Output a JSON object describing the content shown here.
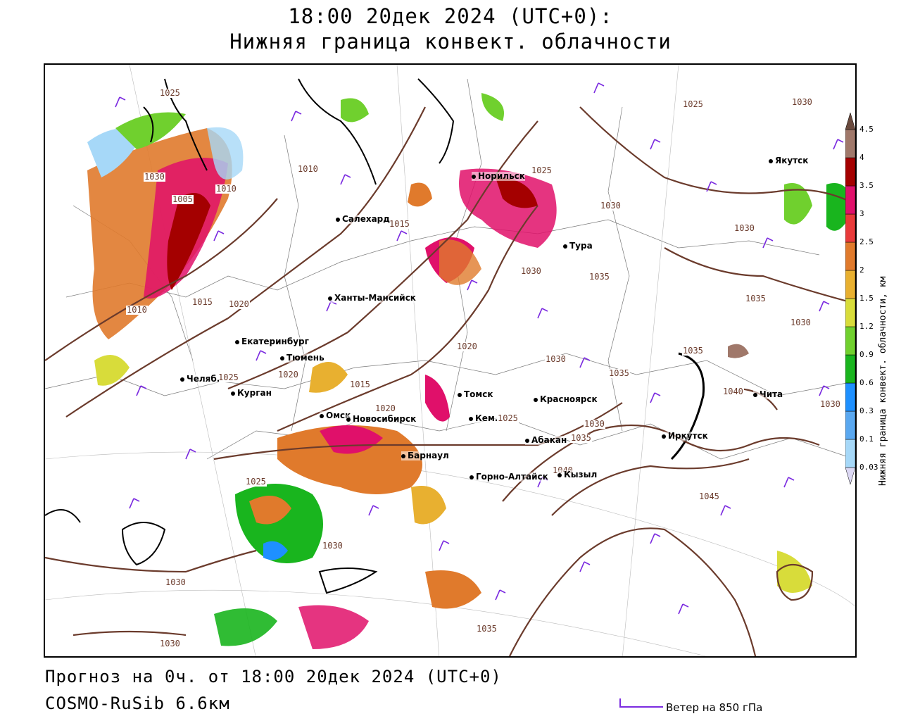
{
  "title_line1": "18:00 20дек 2024 (UTC+0):",
  "title_line2": "Нижняя граница конвект. облачности",
  "footer_line1": "Прогноз на 0ч. от 18:00 20дек 2024 (UTC+0)",
  "footer_line2": "COSMO-RuSib 6.6км",
  "wind_legend_label": "Ветер на 850 гПа",
  "colorbar": {
    "title": "Нижняя граница конвект. облачности, км",
    "levels": [
      "0.03",
      "0.1",
      "0.3",
      "0.6",
      "0.9",
      "1.2",
      "1.5",
      "2",
      "2.5",
      "3",
      "3.5",
      "4",
      "4.5"
    ],
    "colors": [
      "#dcd8f4",
      "#a6d8f8",
      "#5aa8f0",
      "#1e90ff",
      "#19b51e",
      "#70d02e",
      "#d8dc3a",
      "#e8b030",
      "#e07a2c",
      "#e83a3a",
      "#e0106a",
      "#a40000",
      "#a0786a",
      "#6a4a3e"
    ]
  },
  "cities": [
    {
      "name": "Якутск"
    },
    {
      "name": "Норильск"
    },
    {
      "name": "Салехард"
    },
    {
      "name": "Тура"
    },
    {
      "name": "Ханты-Мансийск"
    },
    {
      "name": "Екатеринбург"
    },
    {
      "name": "Тюмень"
    },
    {
      "name": "Челяб."
    },
    {
      "name": "Курган"
    },
    {
      "name": "Омск"
    },
    {
      "name": "Новосибирск"
    },
    {
      "name": "Томск"
    },
    {
      "name": "Кем."
    },
    {
      "name": "Красноярск"
    },
    {
      "name": "Абакан"
    },
    {
      "name": "Барнаул"
    },
    {
      "name": "Горно-Алтайск"
    },
    {
      "name": "Кызыл"
    },
    {
      "name": "Иркутск"
    },
    {
      "name": "Чита"
    }
  ],
  "isobars": [
    "1025",
    "1025",
    "1030",
    "1025",
    "1010",
    "1010",
    "1030",
    "1005",
    "1015",
    "1030",
    "1030",
    "1030",
    "1035",
    "1010",
    "1015",
    "1020",
    "1020",
    "1030",
    "1035",
    "1035",
    "1035",
    "1030",
    "1025",
    "1020",
    "1015",
    "1020",
    "1025",
    "1030",
    "1035",
    "1030",
    "1040",
    "1040",
    "1025",
    "1045",
    "1030",
    "1030",
    "1035",
    "1030"
  ]
}
